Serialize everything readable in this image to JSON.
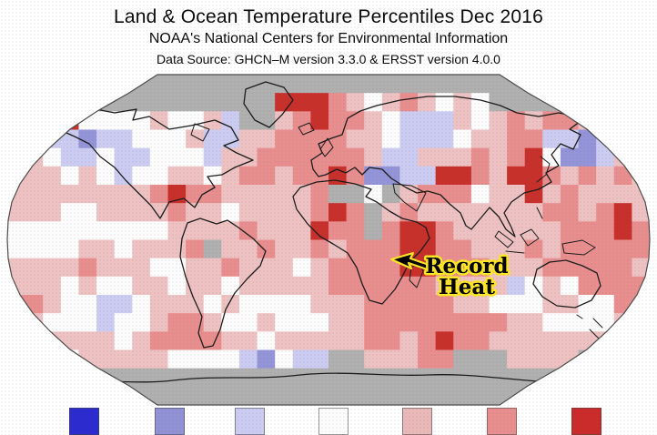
{
  "header": {
    "title": "Land & Ocean Temperature Percentiles Dec 2016",
    "subtitle": "NOAA's National Centers for Environmental Information",
    "datasource": "Data Source: GHCN–M version 3.3.0 & ERSST version 4.0.0"
  },
  "annotation": {
    "line1": "Record",
    "line2": "Heat",
    "text_color": "#000000",
    "outline_color": "#ffe626"
  },
  "legend": {
    "swatch_colors": [
      "#2b2bcf",
      "#9191d6",
      "#ccccf2",
      "#fcfcfc",
      "#e9b9b9",
      "#e98e8e",
      "#cc2b2b"
    ]
  },
  "map": {
    "page_background": "#ffffff",
    "nodata_color": "#b0b0b0",
    "outline_color": "#4d4d4d",
    "coastline_color": "#1c1c1c"
  },
  "chart_data": {
    "type": "heatmap",
    "title": "Land & Ocean Temperature Percentiles Dec 2016",
    "map_projection": "robinson",
    "lon_range": [
      -180,
      180
    ],
    "lat_range": [
      90,
      -90
    ],
    "cell_degrees": 10,
    "grid_cols": 36,
    "grid_row_count": 18,
    "palette": {
      "B": "#2b2bd0",
      "b": "#9494d8",
      "l": "#ccccf2",
      "w": "#fcfcfc",
      "p": "#eec2c2",
      "r": "#e98e8e",
      "R": "#c8302c",
      "g": "#b0b0b0"
    },
    "grid": [
      "gggggggggggggggggggggggggggggggggggg",
      "gggggggggggggggRRRrpwprpwpwggggggggg",
      "wwpRwwwwpwwplggprRrrpwlllpwprprrprpw",
      "pwllbllwwwpllpprrrrppwlllwpprrllblwp",
      "rpwllwllwwwlpprrrrrrpllppprprRwbblpr",
      "pppwpwlwwppwprrprrRrbbllRRrpRRrprprp",
      "pppppppprRrrppppprggwgprrrwppRprpppp",
      "pppwwpppprppwpppprRrgprppppppprrprRp",
      "wwwwwwwwwpppprpppRrrgrRRrpppppprrrRr",
      "wwwwppwppprgpprpprprrrRRrrppprprrrrr",
      "pppprpppwwpprpppwprrrrRRrrrppprrrrrp",
      "pppwpwwppwppwppppprrrrrrpppplwpwrrrr",
      "rrpwwllwpppwpwwwwppprrrrrppwwwppwwrr",
      "wpwwwlwwprrpwwpwwwpprrrrrrrrppwwwwpp",
      "ppppppwprrrrppwppppprrprRrrppppppppp",
      "ppwwpppppwwwwlbwllggppprrgggppppgggg",
      "gggggggggggggggggggggggggggggggggggg",
      "gggggggggggggggggggggggggggggggggggg"
    ]
  }
}
